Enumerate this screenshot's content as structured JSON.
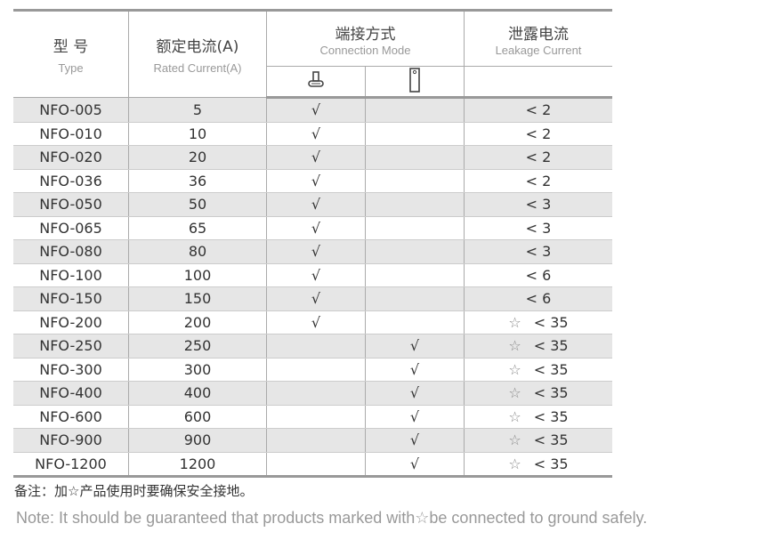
{
  "header": {
    "type_zh": "型 号",
    "type_en": "Type",
    "current_zh": "额定电流(A)",
    "current_en": "Rated Current(A)",
    "conn_zh": "端接方式",
    "conn_en": "Connection Mode",
    "leak_zh": "泄露电流",
    "leak_en": "Leakage Current",
    "conn_icons": [
      "terminal-post-icon",
      "flat-tab-icon"
    ]
  },
  "rows": [
    {
      "type": "NFO-005",
      "current": "5",
      "a": "√",
      "b": "",
      "star": false,
      "leak": "< 2"
    },
    {
      "type": "NFO-010",
      "current": "10",
      "a": "√",
      "b": "",
      "star": false,
      "leak": "< 2"
    },
    {
      "type": "NFO-020",
      "current": "20",
      "a": "√",
      "b": "",
      "star": false,
      "leak": "< 2"
    },
    {
      "type": "NFO-036",
      "current": "36",
      "a": "√",
      "b": "",
      "star": false,
      "leak": "< 2"
    },
    {
      "type": "NFO-050",
      "current": "50",
      "a": "√",
      "b": "",
      "star": false,
      "leak": "< 3"
    },
    {
      "type": "NFO-065",
      "current": "65",
      "a": "√",
      "b": "",
      "star": false,
      "leak": "< 3"
    },
    {
      "type": "NFO-080",
      "current": "80",
      "a": "√",
      "b": "",
      "star": false,
      "leak": "< 3"
    },
    {
      "type": "NFO-100",
      "current": "100",
      "a": "√",
      "b": "",
      "star": false,
      "leak": "< 6"
    },
    {
      "type": "NFO-150",
      "current": "150",
      "a": "√",
      "b": "",
      "star": false,
      "leak": "< 6"
    },
    {
      "type": "NFO-200",
      "current": "200",
      "a": "√",
      "b": "",
      "star": true,
      "leak": "< 35"
    },
    {
      "type": "NFO-250",
      "current": "250",
      "a": "",
      "b": "√",
      "star": true,
      "leak": "< 35"
    },
    {
      "type": "NFO-300",
      "current": "300",
      "a": "",
      "b": "√",
      "star": true,
      "leak": "< 35"
    },
    {
      "type": "NFO-400",
      "current": "400",
      "a": "",
      "b": "√",
      "star": true,
      "leak": "< 35"
    },
    {
      "type": "NFO-600",
      "current": "600",
      "a": "",
      "b": "√",
      "star": true,
      "leak": "< 35"
    },
    {
      "type": "NFO-900",
      "current": "900",
      "a": "",
      "b": "√",
      "star": true,
      "leak": "< 35"
    },
    {
      "type": "NFO-1200",
      "current": "1200",
      "a": "",
      "b": "√",
      "star": true,
      "leak": "< 35"
    }
  ],
  "star_symbol": "☆",
  "note_zh": "备注：加☆产品使用时要确保安全接地。",
  "note_en": "Note: It should be guaranteed that products marked with☆be connected to ground safely."
}
